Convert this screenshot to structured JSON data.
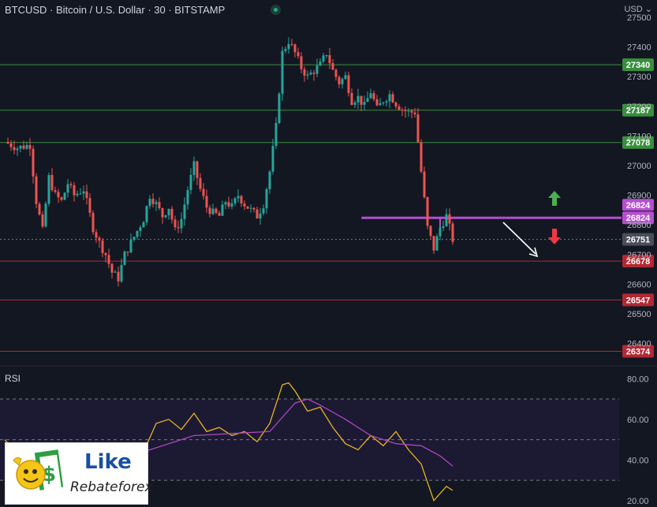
{
  "header": {
    "title": "BTCUSD · Bitcoin / U.S. Dollar · 30 · BITSTAMP",
    "currency": "USD"
  },
  "colors": {
    "background": "#131722",
    "up": "#26a69a",
    "down": "#ef5350",
    "support": "#b22833",
    "resistance": "#388e3c",
    "rsi_line": "#e6b422",
    "rsi_ma": "#ab47bc",
    "level_purple": "#b54fd1"
  },
  "chart_data": [
    {
      "type": "candlestick",
      "title": "BTCUSD · Bitcoin / U.S. Dollar · 30 · BITSTAMP",
      "ylim": [
        26330,
        27500
      ],
      "y_ticks": [
        26400,
        26500,
        26600,
        26700,
        26800,
        26900,
        27000,
        27100,
        27200,
        27300,
        27400,
        27500
      ],
      "current_price": 26751,
      "horizontal_levels": [
        {
          "value": 27340,
          "label": "27340",
          "kind": "resistance"
        },
        {
          "value": 27187,
          "label": "27187",
          "kind": "resistance"
        },
        {
          "value": 27078,
          "label": "27078",
          "kind": "resistance"
        },
        {
          "value": 26824,
          "label": "26824",
          "kind": "pivot"
        },
        {
          "value": 26678,
          "label": "26678",
          "kind": "support"
        },
        {
          "value": 26547,
          "label": "26547",
          "kind": "support"
        },
        {
          "value": 26374,
          "label": "26374",
          "kind": "support"
        }
      ],
      "scenario_arrows": [
        "up",
        "down"
      ],
      "trend_arrow": "down-right",
      "close_path": [
        [
          0,
          27080
        ],
        [
          4,
          27060
        ],
        [
          8,
          27070
        ],
        [
          10,
          26880
        ],
        [
          12,
          26780
        ],
        [
          14,
          26960
        ],
        [
          16,
          26900
        ],
        [
          18,
          26880
        ],
        [
          20,
          26940
        ],
        [
          22,
          26900
        ],
        [
          25,
          26920
        ],
        [
          28,
          26790
        ],
        [
          30,
          26740
        ],
        [
          32,
          26700
        ],
        [
          34,
          26640
        ],
        [
          36,
          26620
        ],
        [
          38,
          26700
        ],
        [
          40,
          26740
        ],
        [
          42,
          26780
        ],
        [
          44,
          26820
        ],
        [
          46,
          26900
        ],
        [
          48,
          26870
        ],
        [
          50,
          26830
        ],
        [
          52,
          26860
        ],
        [
          54,
          26780
        ],
        [
          56,
          26820
        ],
        [
          58,
          26920
        ],
        [
          60,
          27000
        ],
        [
          62,
          26920
        ],
        [
          64,
          26860
        ],
        [
          66,
          26840
        ],
        [
          68,
          26830
        ],
        [
          70,
          26880
        ],
        [
          72,
          26860
        ],
        [
          74,
          26900
        ],
        [
          76,
          26870
        ],
        [
          78,
          26850
        ],
        [
          80,
          26830
        ],
        [
          82,
          26870
        ],
        [
          84,
          26980
        ],
        [
          86,
          27130
        ],
        [
          88,
          27380
        ],
        [
          90,
          27420
        ],
        [
          92,
          27380
        ],
        [
          94,
          27330
        ],
        [
          96,
          27300
        ],
        [
          98,
          27320
        ],
        [
          100,
          27340
        ],
        [
          102,
          27380
        ],
        [
          104,
          27320
        ],
        [
          106,
          27280
        ],
        [
          108,
          27300
        ],
        [
          110,
          27220
        ],
        [
          112,
          27230
        ],
        [
          114,
          27200
        ],
        [
          116,
          27250
        ],
        [
          118,
          27190
        ],
        [
          120,
          27220
        ],
        [
          122,
          27240
        ],
        [
          124,
          27210
        ],
        [
          126,
          27190
        ],
        [
          128,
          27180
        ],
        [
          130,
          27180
        ],
        [
          132,
          26980
        ],
        [
          134,
          26790
        ],
        [
          136,
          26720
        ],
        [
          138,
          26790
        ],
        [
          140,
          26830
        ],
        [
          142,
          26751
        ]
      ]
    },
    {
      "type": "line",
      "title": "RSI",
      "ylim": [
        18,
        84
      ],
      "y_ticks": [
        20.0,
        40.0,
        60.0,
        80.0
      ],
      "bands": [
        30,
        50,
        70
      ],
      "series": [
        {
          "role": "rsi",
          "x": [
            0,
            8,
            16,
            24,
            32,
            36,
            40,
            44,
            48,
            52,
            56,
            60,
            64,
            68,
            72,
            76,
            80,
            84,
            88,
            90,
            92,
            96,
            100,
            104,
            108,
            112,
            116,
            120,
            124,
            128,
            132,
            136,
            140,
            142
          ],
          "values": [
            50,
            36,
            38,
            41,
            33,
            36,
            41,
            44,
            58,
            60,
            55,
            63,
            54,
            56,
            52,
            54,
            49,
            58,
            77,
            78,
            74,
            64,
            66,
            56,
            48,
            45,
            52,
            47,
            54,
            45,
            38,
            20,
            27,
            25
          ]
        },
        {
          "role": "rsi-ma",
          "x": [
            0,
            12,
            24,
            36,
            48,
            60,
            72,
            84,
            92,
            96,
            100,
            108,
            116,
            124,
            132,
            138,
            142
          ],
          "values": [
            48,
            41,
            40,
            40,
            46,
            52,
            53,
            54,
            68,
            70,
            67,
            60,
            52,
            48,
            47,
            42,
            37
          ]
        }
      ]
    }
  ],
  "rsi_label": "RSI",
  "watermark": {
    "brand": "Like",
    "tagline": "Rebateforex"
  }
}
